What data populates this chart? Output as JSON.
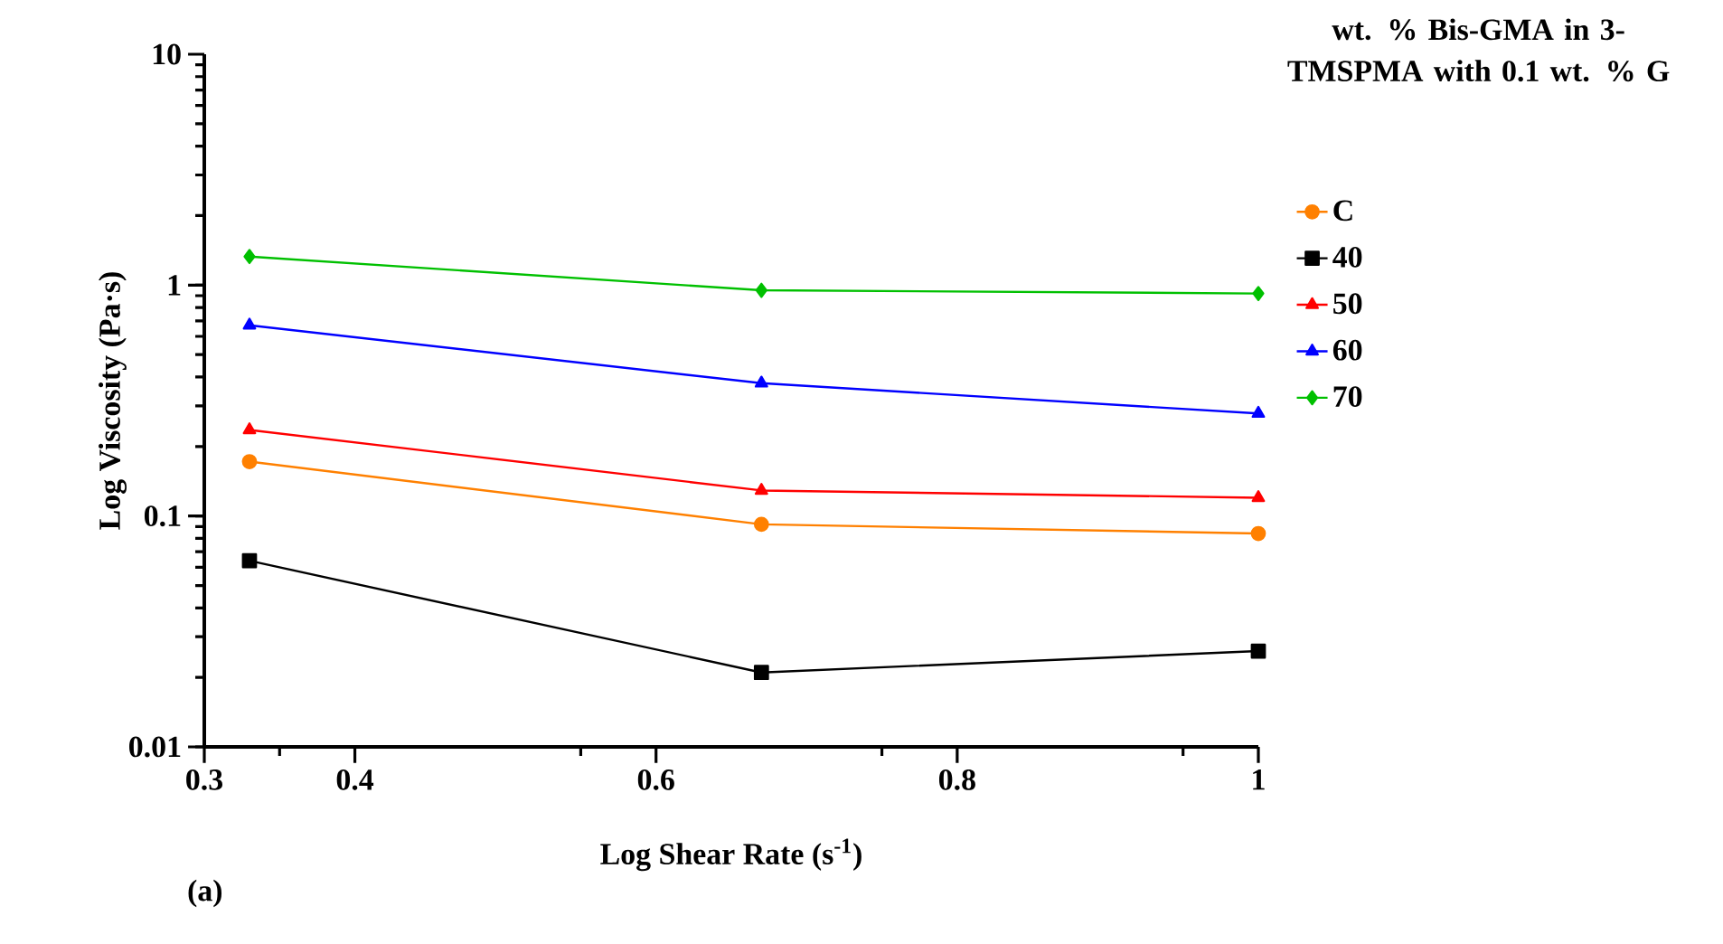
{
  "chart_data": {
    "type": "line",
    "xlabel": "Log Shear Rate (s$^{-1}$)",
    "ylabel": "Log Viscosity (Pa·s)",
    "legend_title": "wt. % Bis-GMA in 3-TMSPMA with 0.1 wt. % G",
    "annotations": [
      "(a)"
    ],
    "x": [
      0.33,
      0.67,
      1
    ],
    "series": [
      {
        "name": "C",
        "color": "#ff8000",
        "marker": "circle",
        "values": [
          0.172,
          0.092,
          0.084
        ]
      },
      {
        "name": "40",
        "color": "#000000",
        "marker": "square",
        "values": [
          0.064,
          0.021,
          0.026
        ]
      },
      {
        "name": "50",
        "color": "#ff0000",
        "marker": "triangle",
        "values": [
          0.236,
          0.129,
          0.12
        ]
      },
      {
        "name": "60",
        "color": "#0000ff",
        "marker": "triangle-down",
        "values": [
          0.67,
          0.376,
          0.278
        ]
      },
      {
        "name": "70",
        "color": "#00c000",
        "marker": "diamond",
        "values": [
          1.33,
          0.95,
          0.92
        ]
      }
    ],
    "log": "y",
    "legend": "right",
    "grid": false,
    "xlim": [
      0.3,
      1
    ],
    "xticks": [
      0.3,
      {
        "value": 0.35,
        "label": null
      },
      0.4,
      {
        "value": 0.55,
        "label": null
      },
      0.6,
      {
        "value": 0.75,
        "label": null
      },
      0.8,
      {
        "value": 0.95,
        "label": null
      },
      1
    ],
    "ylim": [
      0.01,
      10
    ],
    "yticks": [
      0.01,
      0.1,
      1,
      10
    ]
  }
}
